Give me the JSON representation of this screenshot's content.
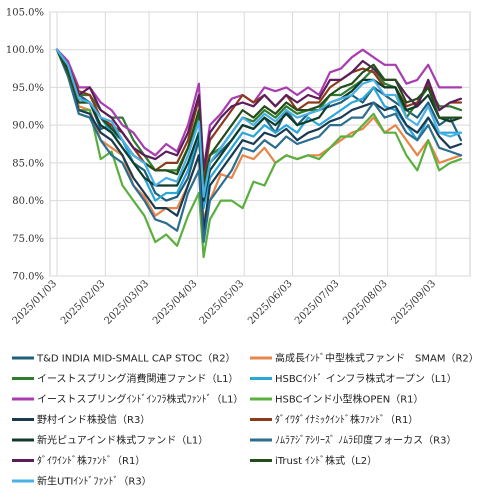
{
  "chart_data": {
    "type": "line",
    "ylim": [
      70,
      105
    ],
    "y_ticks": [
      "70.0%",
      "75.0%",
      "80.0%",
      "85.0%",
      "90.0%",
      "95.0%",
      "100.0%",
      "105.0%"
    ],
    "y_tick_values": [
      70,
      75,
      80,
      85,
      90,
      95,
      100,
      105
    ],
    "x_ticks": [
      "2025/01/03",
      "2025/02/03",
      "2025/03/03",
      "2025/04/03",
      "2025/05/03",
      "2025/06/03",
      "2025/07/03",
      "2025/08/03",
      "2025/09/03"
    ],
    "x_dates": [
      "2025-01-03",
      "2025-01-10",
      "2025-01-17",
      "2025-01-24",
      "2025-01-31",
      "2025-02-07",
      "2025-02-14",
      "2025-02-21",
      "2025-02-28",
      "2025-03-07",
      "2025-03-14",
      "2025-03-21",
      "2025-03-28",
      "2025-04-04",
      "2025-04-07",
      "2025-04-11",
      "2025-04-18",
      "2025-04-25",
      "2025-05-02",
      "2025-05-09",
      "2025-05-16",
      "2025-05-23",
      "2025-05-30",
      "2025-06-06",
      "2025-06-13",
      "2025-06-20",
      "2025-06-27",
      "2025-07-04",
      "2025-07-11",
      "2025-07-18",
      "2025-07-25",
      "2025-08-01",
      "2025-08-08",
      "2025-08-15",
      "2025-08-22",
      "2025-08-29",
      "2025-09-05",
      "2025-09-12",
      "2025-09-19"
    ],
    "grid": true,
    "legend_position": "bottom",
    "series": [
      {
        "name": "T&D INDIA MID-SMALL CAP STOC（R2）",
        "color": "#1f5f7a",
        "values": [
          100,
          97.5,
          94,
          93,
          89.5,
          90,
          88,
          85,
          84,
          81,
          80,
          80.5,
          83,
          88,
          81,
          85,
          86.5,
          88,
          90,
          89.5,
          91,
          89,
          92,
          90,
          91.5,
          92,
          92.5,
          93,
          94,
          93,
          95,
          94,
          93,
          92,
          91,
          93,
          90,
          91,
          88
        ]
      },
      {
        "name": "高成長ｲﾝﾄﾞ中型株式ファンド　SMAM（R2）",
        "color": "#e8864a",
        "values": [
          100,
          97,
          92.5,
          92,
          88,
          87,
          86,
          82,
          80.5,
          78,
          79,
          79,
          82,
          86,
          77.5,
          80,
          83.5,
          83,
          86,
          85.5,
          87,
          85,
          86,
          85.5,
          86,
          86,
          87,
          88,
          89,
          89.5,
          91,
          89,
          90,
          88,
          86,
          88,
          85,
          85.5,
          86
        ]
      },
      {
        "name": "イーストスプリング消費関連ファンド（L1）",
        "color": "#2e7d32",
        "values": [
          100,
          98,
          94,
          94,
          92,
          91,
          91,
          88,
          86,
          84,
          84,
          84,
          87,
          91,
          82,
          86,
          87,
          89,
          91,
          90.5,
          92,
          91,
          92.5,
          91.5,
          92,
          92,
          94,
          94,
          95,
          96,
          97.5,
          95.5,
          95,
          91,
          93,
          95,
          92.5,
          92.5,
          92
        ]
      },
      {
        "name": "HSBCｲﾝﾄﾞ インフラ株式オープン（L1）",
        "color": "#2aa6d9",
        "values": [
          100,
          97,
          93,
          93,
          91,
          89,
          88,
          85,
          83,
          80,
          81,
          81,
          84,
          89,
          79,
          83,
          85,
          87,
          89,
          88.5,
          90,
          89,
          90,
          89,
          91,
          90,
          91,
          92,
          93,
          93.5,
          95,
          92.5,
          92,
          90,
          88,
          91,
          89,
          89,
          89
        ]
      },
      {
        "name": "イーストスプリングｲﾝﾄﾞｲﾝﾌﾗ株式ﾌｧﾝﾄﾞ（L1）",
        "color": "#a83cb0",
        "values": [
          100,
          98.5,
          95,
          95,
          93,
          92,
          90,
          89,
          87,
          86,
          87.5,
          86.5,
          90,
          95.5,
          84,
          90,
          91.5,
          93.5,
          94,
          93,
          95,
          94.5,
          95,
          94,
          95,
          94,
          97,
          97.5,
          99,
          100,
          99,
          98,
          98,
          95.5,
          96,
          98,
          95,
          95,
          95
        ]
      },
      {
        "name": "HSBCインド小型株OPEN（R1）",
        "color": "#5aaf3e",
        "values": [
          100,
          96.5,
          92,
          92,
          85.5,
          86.5,
          82,
          80,
          78,
          74.5,
          75.5,
          74,
          78,
          81,
          72.5,
          77.5,
          80,
          80,
          79,
          82.5,
          82,
          85,
          86,
          85.5,
          86,
          85.5,
          87,
          88.5,
          88.5,
          90,
          91.5,
          89,
          89,
          86,
          84,
          88,
          84,
          85,
          85.5
        ]
      },
      {
        "name": "野村インド株投信（R3）",
        "color": "#1a3a52",
        "values": [
          100,
          97,
          92,
          91.5,
          89,
          88,
          86,
          83,
          81,
          79,
          79,
          78,
          82,
          86,
          76,
          82,
          84,
          86,
          88,
          87.5,
          89,
          88.5,
          89.5,
          88,
          89,
          89.5,
          90.5,
          91,
          92,
          92.5,
          93,
          92,
          92.5,
          90,
          89,
          91,
          88.5,
          87,
          87.5
        ]
      },
      {
        "name": "ﾀﾞｲﾜﾀﾞｲﾅﾐｯｸｲﾝﾄﾞ株ﾌｧﾝﾄﾞ（R1）",
        "color": "#8b3a1c",
        "values": [
          100,
          98,
          94.5,
          94,
          91,
          90,
          89,
          87,
          85,
          84,
          85,
          85,
          88,
          93.5,
          83,
          88,
          90,
          92,
          94,
          93,
          94,
          92.5,
          94,
          92,
          93,
          93,
          95,
          96,
          97,
          97.5,
          97,
          95,
          95,
          92.5,
          93,
          95.5,
          92,
          93,
          93
        ]
      },
      {
        "name": "新光ピュアインド株式ファンド（L1）",
        "color": "#0f3b2b",
        "values": [
          100,
          97.5,
          93.5,
          93,
          90,
          89,
          87,
          85,
          83,
          82,
          82,
          82,
          85,
          89,
          80,
          84,
          86,
          88,
          90,
          89.5,
          91,
          90,
          91.5,
          90,
          90.5,
          91,
          93,
          93.5,
          94.5,
          96,
          96,
          95,
          95,
          92,
          92.5,
          94,
          91,
          90.5,
          91
        ]
      },
      {
        "name": "ﾉﾑﾗｱｼﾞｱｼﾘｰｽﾞ ﾉﾑﾗ印度フォーカス（R3）",
        "color": "#2c6e8f",
        "values": [
          100,
          96.5,
          91.5,
          91,
          88,
          86,
          85,
          82,
          80,
          77.5,
          77,
          76,
          81,
          84,
          74.5,
          80,
          82,
          84,
          87,
          86.5,
          88,
          87,
          88.5,
          87.5,
          88,
          88.5,
          90,
          90,
          91,
          91,
          93,
          91,
          91.5,
          89,
          88,
          90,
          87,
          86.5,
          86
        ]
      },
      {
        "name": "ﾀﾞｲﾜｲﾝﾄﾞ株ﾌｧﾝﾄﾞ（R1）",
        "color": "#5c1d5a",
        "values": [
          100,
          98,
          94,
          95,
          92,
          91,
          89,
          87,
          86,
          85.5,
          86.5,
          86,
          89,
          94,
          84,
          89,
          91,
          92.5,
          93,
          92.5,
          94,
          92.5,
          94,
          93,
          94,
          93.5,
          96,
          96,
          97,
          98.5,
          97.5,
          96,
          96,
          94,
          92.5,
          96,
          92,
          93,
          93.5
        ]
      },
      {
        "name": "iTrust ｲﾝﾄﾞ株式（L2）",
        "color": "#244d1a",
        "values": [
          100,
          97,
          93,
          93,
          91,
          89.5,
          88,
          86,
          85,
          84,
          84,
          83.5,
          87,
          92,
          82,
          86,
          88,
          90,
          92,
          91,
          92.5,
          91.5,
          93,
          92,
          92,
          92.5,
          94,
          95,
          95.5,
          97,
          98,
          96,
          96,
          93,
          93.5,
          95,
          91,
          91,
          91
        ]
      },
      {
        "name": "新生UTIｲﾝﾄﾞﾌｧﾝﾄﾞ（R3）",
        "color": "#4ab0e6",
        "values": [
          100,
          98,
          93.5,
          93,
          91,
          90.5,
          88,
          86,
          85,
          82,
          83,
          82.5,
          86,
          90.5,
          80.5,
          85,
          87,
          89,
          91,
          90,
          91.5,
          90.5,
          92,
          91,
          91.5,
          92,
          93,
          93.5,
          94,
          95.5,
          96,
          94,
          94,
          91,
          90,
          92.5,
          89,
          88.5,
          89
        ]
      }
    ]
  }
}
